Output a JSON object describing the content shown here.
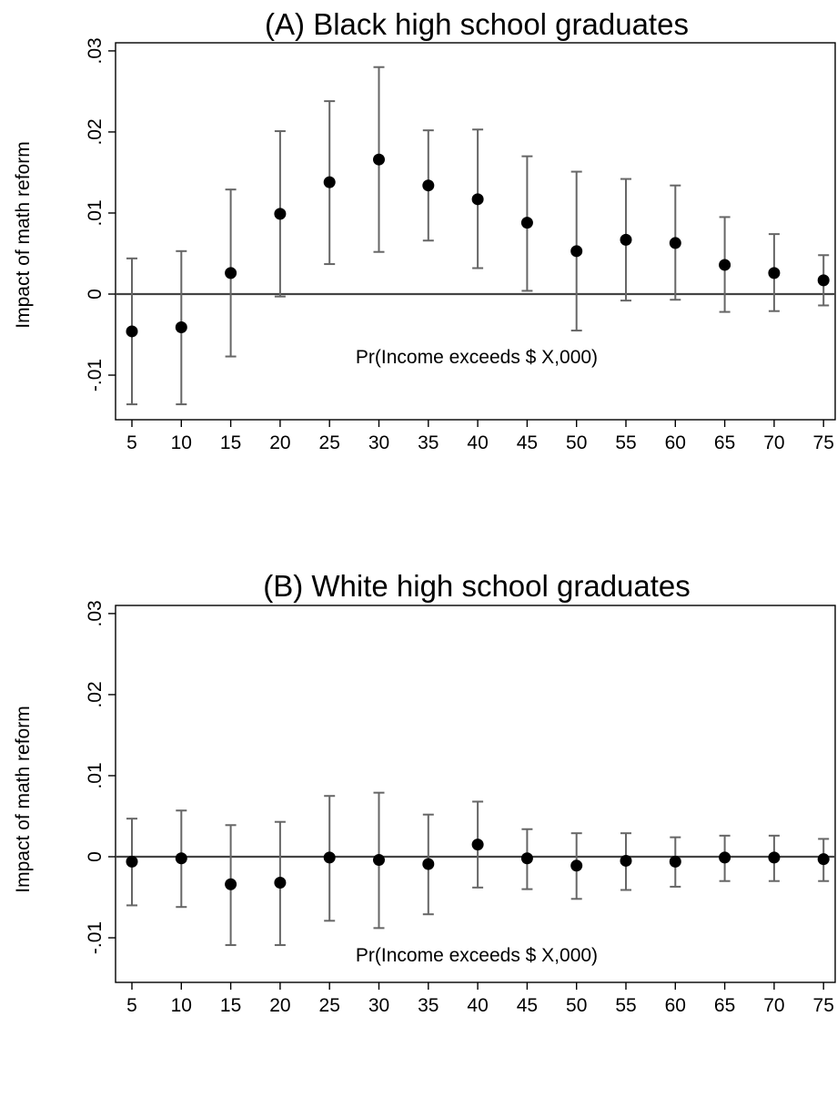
{
  "chart_data": [
    {
      "type": "scatter",
      "title": "(A) Black high school graduates",
      "xlabel": "Pr(Income exceeds $ X,000)",
      "ylabel": "Impact of math reform",
      "x": [
        5,
        10,
        15,
        20,
        25,
        30,
        35,
        40,
        45,
        50,
        55,
        60,
        65,
        70,
        75
      ],
      "ylim": [
        -0.0155,
        0.031
      ],
      "yticks": [
        -0.01,
        0,
        0.01,
        0.02,
        0.03
      ],
      "ytick_labels": [
        "-.01",
        "0",
        ".01",
        ".02",
        ".03"
      ],
      "reference_line": 0,
      "series": [
        {
          "estimate": [
            -0.0046,
            -0.0041,
            0.0026,
            0.0099,
            0.0138,
            0.0166,
            0.0134,
            0.0117,
            0.0088,
            0.0053,
            0.0067,
            0.0063,
            0.0036,
            0.0026,
            0.0017
          ],
          "ci_low": [
            -0.0136,
            -0.0136,
            -0.0077,
            -0.0003,
            0.0037,
            0.0052,
            0.0066,
            0.0032,
            0.0004,
            -0.0045,
            -0.0008,
            -0.0007,
            -0.0022,
            -0.0021,
            -0.0014
          ],
          "ci_high": [
            0.0044,
            0.0053,
            0.0129,
            0.0201,
            0.0238,
            0.028,
            0.0202,
            0.0203,
            0.017,
            0.0151,
            0.0142,
            0.0134,
            0.0095,
            0.0074,
            0.0048
          ]
        }
      ]
    },
    {
      "type": "scatter",
      "title": "(B) White high school graduates",
      "xlabel": "Pr(Income exceeds $ X,000)",
      "ylabel": "Impact of math reform",
      "x": [
        5,
        10,
        15,
        20,
        25,
        30,
        35,
        40,
        45,
        50,
        55,
        60,
        65,
        70,
        75
      ],
      "ylim": [
        -0.0155,
        0.031
      ],
      "yticks": [
        -0.01,
        0,
        0.01,
        0.02,
        0.03
      ],
      "ytick_labels": [
        "-.01",
        "0",
        ".01",
        ".02",
        ".03"
      ],
      "reference_line": 0,
      "series": [
        {
          "estimate": [
            -0.0006,
            -0.0002,
            -0.0034,
            -0.0032,
            -0.0001,
            -0.0004,
            -0.0009,
            0.0015,
            -0.0002,
            -0.0011,
            -0.0005,
            -0.0006,
            -0.0001,
            -0.0001,
            -0.0003
          ],
          "ci_low": [
            -0.006,
            -0.0062,
            -0.0109,
            -0.0109,
            -0.0079,
            -0.0088,
            -0.0071,
            -0.0038,
            -0.004,
            -0.0052,
            -0.0041,
            -0.0037,
            -0.003,
            -0.003,
            -0.003
          ],
          "ci_high": [
            0.0047,
            0.0057,
            0.0039,
            0.0043,
            0.0075,
            0.0079,
            0.0052,
            0.0068,
            0.0034,
            0.0029,
            0.0029,
            0.0024,
            0.0026,
            0.0026,
            0.0022
          ]
        }
      ]
    }
  ]
}
